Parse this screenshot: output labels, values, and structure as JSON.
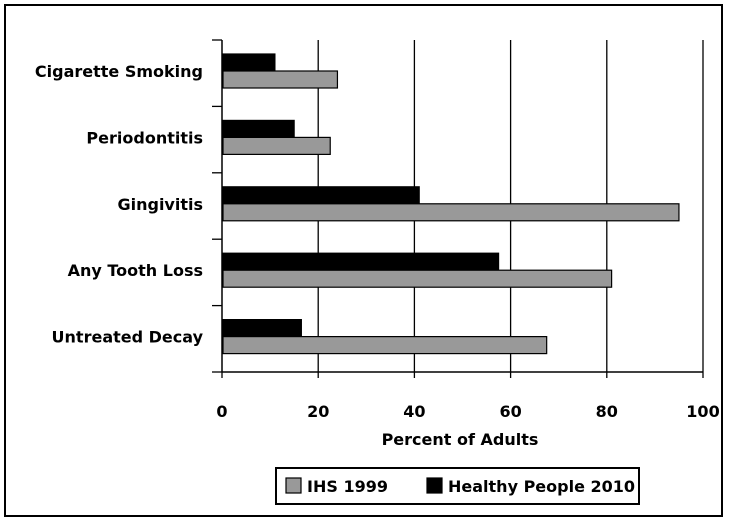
{
  "chart_data": {
    "type": "bar",
    "orientation": "horizontal",
    "categories": [
      "Cigarette Smoking",
      "Periodontitis",
      "Gingivitis",
      "Any Tooth Loss",
      "Untreated Decay"
    ],
    "series": [
      {
        "name": "Healthy People 2010",
        "color": "#000000",
        "values": [
          11,
          15,
          41,
          57.5,
          16.5
        ]
      },
      {
        "name": "IHS 1999",
        "color": "#999999",
        "values": [
          24,
          22.5,
          95,
          81,
          67.5
        ]
      }
    ],
    "xlabel": "Percent of Adults",
    "xlim": [
      0,
      100
    ],
    "xticks": [
      0,
      20,
      40,
      60,
      80,
      100
    ],
    "xtick_labels": [
      "0",
      "20",
      "40",
      "60",
      "80",
      "100"
    ],
    "grid": "vertical",
    "legend": {
      "placement": "bottom",
      "entries": [
        {
          "label": "IHS 1999",
          "color": "#999999"
        },
        {
          "label": "Healthy People 2010",
          "color": "#000000"
        }
      ]
    }
  }
}
